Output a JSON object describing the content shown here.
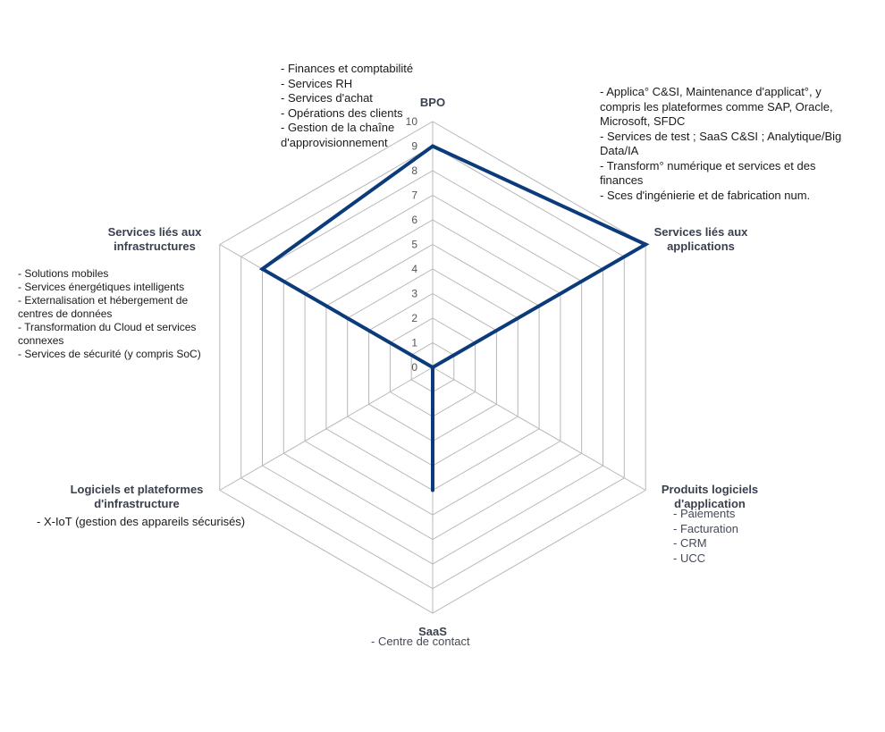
{
  "chart_data": {
    "type": "radar",
    "title": "",
    "rmin": 0,
    "rmax": 10,
    "ticks": [
      0,
      1,
      2,
      3,
      4,
      5,
      6,
      7,
      8,
      9,
      10
    ],
    "axes": [
      "BPO",
      "Services liés aux applications",
      "Produits logiciels d'application",
      "SaaS",
      "Logiciels et plateformes d'infrastructure",
      "Services liés aux infrastructures"
    ],
    "axis_label_lines": [
      [
        "BPO"
      ],
      [
        "Services liés aux",
        "applications"
      ],
      [
        "Produits logiciels",
        "d'application"
      ],
      [
        "SaaS"
      ],
      [
        "Logiciels et plateformes",
        "d'infrastructure"
      ],
      [
        "Services liés aux",
        "infrastructures"
      ]
    ],
    "series": [
      {
        "values": [
          9,
          10,
          0,
          5,
          0,
          8
        ]
      }
    ],
    "colors": {
      "series": "#0b3b7a",
      "grid": "#b8b8b8",
      "axis_label": "#3a4050",
      "tick": "#555555"
    }
  },
  "annotations": {
    "bpo": [
      "- Finances et comptabilité",
      "- Services RH",
      "- Services d'achat",
      "- Opérations des clients",
      "- Gestion de la chaîne",
      "d'approvisionnement"
    ],
    "applications": [
      "- Applica° C&SI, Maintenance d'applicat°, y",
      "compris les plateformes comme SAP, Oracle,",
      "Microsoft, SFDC",
      "- Services de test ;  SaaS C&SI ; Analytique/Big",
      "Data/IA",
      "- Transform° numérique et services et des",
      "finances",
      "- Sces d'ingénierie et de fabrication num."
    ],
    "infrastructures": [
      "- Solutions mobiles",
      "- Services énergétiques intelligents",
      "- Externalisation et hébergement de",
      "centres de données",
      "- Transformation du Cloud et services",
      "connexes",
      "- Services de sécurité (y compris SoC)"
    ],
    "produits": [
      "- Paiements",
      "- Facturation",
      "- CRM",
      "- UCC"
    ],
    "logiciels": [
      "- X-IoT (gestion des appareils sécurisés)"
    ],
    "saas": [
      "- Centre de contact"
    ]
  }
}
